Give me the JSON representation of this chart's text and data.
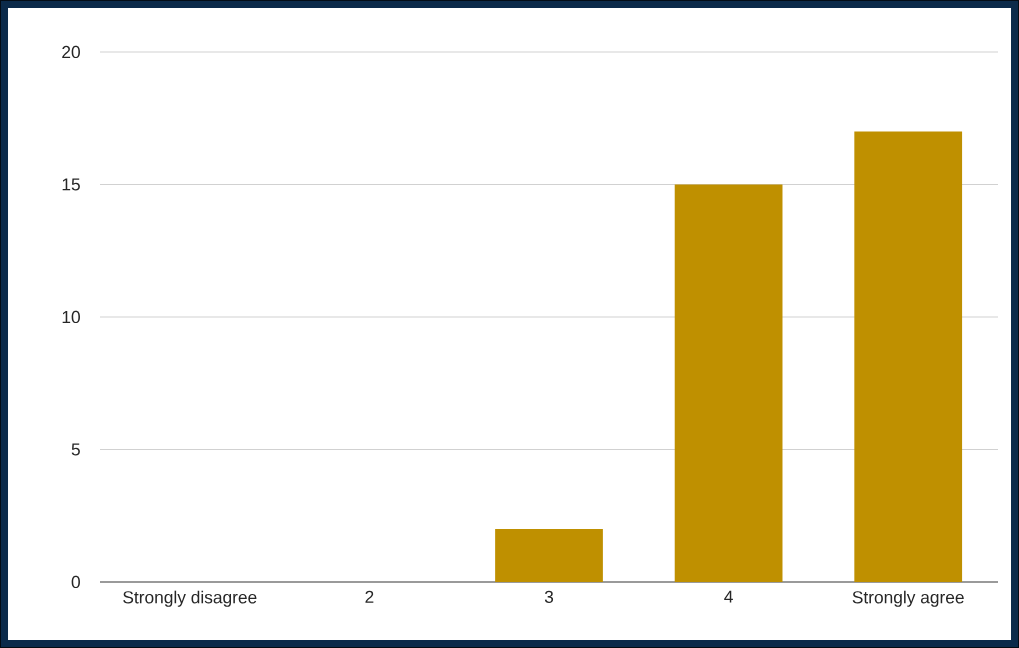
{
  "chart_data": {
    "type": "bar",
    "categories": [
      "Strongly disagree",
      "2",
      "3",
      "4",
      "Strongly agree"
    ],
    "values": [
      0,
      0,
      2,
      15,
      17
    ],
    "color": "#bf9000",
    "ylim": [
      0,
      20
    ],
    "yticks": [
      0,
      5,
      10,
      15,
      20
    ],
    "grid": "y"
  }
}
